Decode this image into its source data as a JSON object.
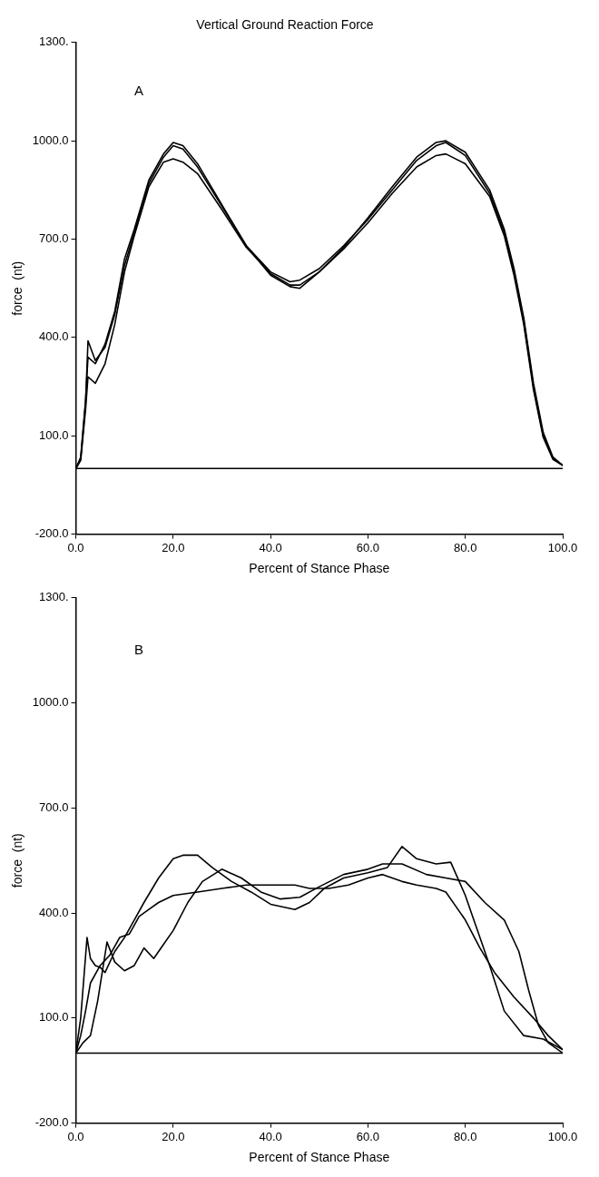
{
  "chart_data": [
    {
      "type": "line",
      "title": "Vertical Ground Reaction Force",
      "xlabel": "Percent of Stance Phase",
      "ylabel": "force  (nt)",
      "annotations": [
        "A"
      ],
      "legend": false,
      "grid": false,
      "marker": "none",
      "line_style": "solid",
      "xlim": [
        0,
        100
      ],
      "xticks": [
        {
          "value": 0,
          "label": "0.0"
        },
        {
          "value": 20,
          "label": "20.0"
        },
        {
          "value": 40,
          "label": "40.0"
        },
        {
          "value": 60,
          "label": "60.0"
        },
        {
          "value": 80,
          "label": "80.0"
        },
        {
          "value": 100,
          "label": "100.0"
        }
      ],
      "ylim": [
        -200,
        1300
      ],
      "yticks": [
        {
          "value": -200,
          "label": "-200.0"
        },
        {
          "value": 100,
          "label": "100.0"
        },
        {
          "value": 400,
          "label": "400.0"
        },
        {
          "value": 700,
          "label": "700.0"
        },
        {
          "value": 1000,
          "label": "1000.0"
        },
        {
          "value": 1300,
          "label": "1300."
        }
      ],
      "ref_lines": [
        {
          "axis": "y",
          "value": 0,
          "color": "#000000"
        }
      ],
      "series": [
        {
          "color": "#000000",
          "x": [
            0,
            1,
            2,
            2.5,
            4,
            6,
            8,
            10,
            12,
            15,
            18,
            20,
            22,
            25,
            30,
            35,
            40,
            44,
            46,
            50,
            55,
            60,
            65,
            70,
            74,
            76,
            80,
            85,
            88,
            90,
            92,
            94,
            96,
            98,
            100
          ],
          "values": [
            0,
            30,
            200,
            390,
            330,
            370,
            470,
            620,
            720,
            870,
            950,
            985,
            975,
            920,
            800,
            680,
            600,
            570,
            575,
            610,
            680,
            760,
            850,
            940,
            985,
            995,
            955,
            840,
            720,
            600,
            450,
            250,
            100,
            30,
            10
          ]
        },
        {
          "color": "#000000",
          "x": [
            0,
            1,
            2,
            2.5,
            4,
            6,
            8,
            10,
            12,
            15,
            18,
            20,
            22,
            25,
            30,
            35,
            40,
            44,
            46,
            50,
            55,
            60,
            65,
            70,
            74,
            76,
            80,
            85,
            88,
            90,
            92,
            94,
            96,
            98,
            100
          ],
          "values": [
            0,
            25,
            180,
            280,
            260,
            320,
            440,
            600,
            710,
            860,
            935,
            945,
            935,
            900,
            790,
            675,
            595,
            560,
            560,
            600,
            670,
            750,
            840,
            920,
            955,
            960,
            930,
            830,
            710,
            590,
            440,
            240,
            95,
            28,
            10
          ]
        },
        {
          "color": "#000000",
          "x": [
            0,
            1,
            2,
            2.5,
            4,
            6,
            8,
            10,
            12,
            15,
            18,
            20,
            22,
            25,
            30,
            35,
            40,
            44,
            46,
            50,
            55,
            60,
            65,
            70,
            74,
            76,
            80,
            85,
            88,
            90,
            92,
            94,
            96,
            98,
            100
          ],
          "values": [
            0,
            35,
            210,
            340,
            320,
            380,
            480,
            640,
            730,
            880,
            960,
            995,
            985,
            930,
            805,
            680,
            590,
            555,
            550,
            600,
            675,
            765,
            860,
            950,
            995,
            1000,
            965,
            850,
            730,
            610,
            460,
            260,
            110,
            35,
            10
          ]
        }
      ]
    },
    {
      "type": "line",
      "xlabel": "Percent of Stance Phase",
      "ylabel": "force  (nt)",
      "annotations": [
        "B"
      ],
      "legend": false,
      "grid": false,
      "marker": "none",
      "line_style": "solid",
      "xlim": [
        0,
        100
      ],
      "xticks": [
        {
          "value": 0,
          "label": "0.0"
        },
        {
          "value": 20,
          "label": "20.0"
        },
        {
          "value": 40,
          "label": "40.0"
        },
        {
          "value": 60,
          "label": "60.0"
        },
        {
          "value": 80,
          "label": "80.0"
        },
        {
          "value": 100,
          "label": "100.0"
        }
      ],
      "ylim": [
        -200,
        1300
      ],
      "yticks": [
        {
          "value": -200,
          "label": "-200.0"
        },
        {
          "value": 100,
          "label": "100.0"
        },
        {
          "value": 400,
          "label": "400.0"
        },
        {
          "value": 700,
          "label": "700.0"
        },
        {
          "value": 1000,
          "label": "1000.0"
        },
        {
          "value": 1300,
          "label": "1300."
        }
      ],
      "ref_lines": [
        {
          "axis": "y",
          "value": 0,
          "color": "#000000"
        }
      ],
      "series": [
        {
          "color": "#000000",
          "x": [
            0,
            1,
            2.3,
            3,
            4,
            5,
            6,
            8,
            10,
            12,
            14,
            17,
            20,
            22,
            25,
            28,
            32,
            36,
            40,
            45,
            48,
            51,
            55,
            60,
            64,
            67,
            70,
            74,
            77,
            80,
            83,
            85,
            88,
            92,
            96,
            100
          ],
          "values": [
            0,
            100,
            330,
            270,
            250,
            245,
            230,
            290,
            330,
            380,
            430,
            500,
            555,
            565,
            565,
            530,
            490,
            460,
            425,
            410,
            430,
            470,
            500,
            515,
            530,
            590,
            555,
            540,
            545,
            450,
            330,
            250,
            120,
            50,
            40,
            10
          ]
        },
        {
          "color": "#000000",
          "x": [
            0,
            1.5,
            3,
            4.5,
            6.4,
            8,
            10,
            12,
            14,
            16,
            18,
            20,
            23,
            26,
            30,
            34,
            38,
            42,
            46,
            50,
            55,
            60,
            63,
            67,
            72,
            76,
            80,
            84,
            88,
            91,
            93,
            95,
            97,
            100
          ],
          "values": [
            0,
            30,
            50,
            150,
            317,
            260,
            235,
            250,
            300,
            270,
            310,
            350,
            430,
            490,
            525,
            500,
            460,
            440,
            445,
            475,
            510,
            525,
            540,
            540,
            510,
            500,
            490,
            430,
            380,
            290,
            180,
            80,
            30,
            0
          ]
        },
        {
          "color": "#000000",
          "x": [
            0,
            1,
            2,
            3,
            5,
            7,
            9,
            11,
            13,
            15,
            17,
            20,
            25,
            30,
            35,
            40,
            45,
            48,
            52,
            56,
            60,
            63,
            67,
            70,
            74,
            76,
            78,
            80,
            83,
            86,
            90,
            94,
            97,
            100
          ],
          "values": [
            0,
            50,
            120,
            200,
            250,
            280,
            330,
            340,
            390,
            410,
            430,
            450,
            460,
            470,
            480,
            480,
            480,
            470,
            470,
            480,
            500,
            510,
            490,
            480,
            470,
            460,
            420,
            380,
            300,
            230,
            160,
            100,
            50,
            10
          ]
        }
      ]
    }
  ]
}
